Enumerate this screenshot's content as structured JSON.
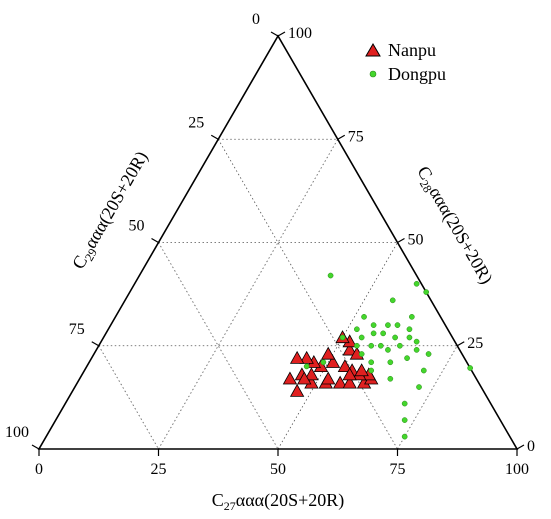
{
  "chart_data": {
    "type": "scatter",
    "subtype": "ternary",
    "axes": {
      "c27": {
        "label_main": "C",
        "label_sub": "27",
        "label_rest": "ααα(20S+20R)",
        "ticks": [
          "0",
          "25",
          "50",
          "75",
          "100"
        ]
      },
      "c28": {
        "label_main": "C",
        "label_sub": "28",
        "label_rest": "ααα(20S+20R)",
        "ticks": [
          "0",
          "25",
          "50",
          "75",
          "100"
        ]
      },
      "c29": {
        "label_main": "C",
        "label_sub": "29",
        "label_rest": "ααα(20S+20R)",
        "ticks": [
          "0",
          "25",
          "50",
          "75",
          "100"
        ]
      }
    },
    "grid": true,
    "grid_style": "dotted",
    "legend_position": "top-right",
    "series": [
      {
        "name": "Nanpu",
        "marker": "triangle",
        "color": "#e02020",
        "points": [
          {
            "c27": 47,
            "c28": 14,
            "c29": 39
          },
          {
            "c27": 49,
            "c28": 16,
            "c29": 35
          },
          {
            "c27": 52,
            "c28": 16,
            "c29": 32
          },
          {
            "c27": 44,
            "c28": 17,
            "c29": 39
          },
          {
            "c27": 46,
            "c28": 18,
            "c29": 36
          },
          {
            "c27": 48,
            "c28": 18,
            "c29": 34
          },
          {
            "c27": 52,
            "c28": 17,
            "c29": 31
          },
          {
            "c27": 55,
            "c28": 16,
            "c29": 29
          },
          {
            "c27": 57,
            "c28": 16,
            "c29": 27
          },
          {
            "c27": 60,
            "c28": 16,
            "c29": 24
          },
          {
            "c27": 61,
            "c28": 17,
            "c29": 22
          },
          {
            "c27": 60,
            "c28": 18,
            "c29": 22
          },
          {
            "c27": 58,
            "c28": 18,
            "c29": 24
          },
          {
            "c27": 56,
            "c28": 19,
            "c29": 25
          },
          {
            "c27": 54,
            "c28": 20,
            "c29": 26
          },
          {
            "c27": 51,
            "c28": 21,
            "c29": 28
          },
          {
            "c27": 49,
            "c28": 20,
            "c29": 31
          },
          {
            "c27": 47,
            "c28": 21,
            "c29": 32
          },
          {
            "c27": 45,
            "c28": 22,
            "c29": 33
          },
          {
            "c27": 43,
            "c28": 22,
            "c29": 35
          },
          {
            "c27": 49,
            "c28": 23,
            "c29": 28
          },
          {
            "c27": 53,
            "c28": 24,
            "c29": 23
          },
          {
            "c27": 55,
            "c28": 23,
            "c29": 22
          },
          {
            "c27": 52,
            "c28": 26,
            "c29": 22
          },
          {
            "c27": 50,
            "c28": 27,
            "c29": 23
          },
          {
            "c27": 56,
            "c28": 18,
            "c29": 26
          },
          {
            "c27": 58,
            "c28": 19,
            "c29": 23
          },
          {
            "c27": 47,
            "c28": 17,
            "c29": 36
          }
        ]
      },
      {
        "name": "Dongpu",
        "marker": "circle",
        "color": "#44d62c",
        "points": [
          {
            "c27": 40,
            "c28": 42,
            "c29": 18
          },
          {
            "c27": 59,
            "c28": 40,
            "c29": 1
          },
          {
            "c27": 62,
            "c28": 38,
            "c29": 0
          },
          {
            "c27": 56,
            "c28": 36,
            "c29": 8
          },
          {
            "c27": 62,
            "c28": 32,
            "c29": 6
          },
          {
            "c27": 52,
            "c28": 32,
            "c29": 16
          },
          {
            "c27": 58,
            "c28": 30,
            "c29": 12
          },
          {
            "c27": 55,
            "c28": 30,
            "c29": 15
          },
          {
            "c27": 52,
            "c28": 29,
            "c29": 19
          },
          {
            "c27": 60,
            "c28": 30,
            "c29": 10
          },
          {
            "c27": 63,
            "c28": 29,
            "c29": 8
          },
          {
            "c27": 56,
            "c28": 28,
            "c29": 16
          },
          {
            "c27": 58,
            "c28": 28,
            "c29": 14
          },
          {
            "c27": 61,
            "c28": 27,
            "c29": 12
          },
          {
            "c27": 64,
            "c28": 27,
            "c29": 9
          },
          {
            "c27": 54,
            "c28": 27,
            "c29": 19
          },
          {
            "c27": 50,
            "c28": 27,
            "c29": 23
          },
          {
            "c27": 66,
            "c28": 26,
            "c29": 8
          },
          {
            "c27": 63,
            "c28": 25,
            "c29": 12
          },
          {
            "c27": 59,
            "c28": 25,
            "c29": 16
          },
          {
            "c27": 57,
            "c28": 25,
            "c29": 18
          },
          {
            "c27": 54,
            "c28": 25,
            "c29": 21
          },
          {
            "c27": 67,
            "c28": 24,
            "c29": 9
          },
          {
            "c27": 61,
            "c28": 24,
            "c29": 15
          },
          {
            "c27": 56,
            "c28": 23,
            "c29": 21
          },
          {
            "c27": 70,
            "c28": 23,
            "c29": 7
          },
          {
            "c27": 66,
            "c28": 22,
            "c29": 12
          },
          {
            "c27": 63,
            "c28": 21,
            "c29": 16
          },
          {
            "c27": 59,
            "c28": 21,
            "c29": 20
          },
          {
            "c27": 49,
            "c28": 21,
            "c29": 30
          },
          {
            "c27": 46,
            "c28": 20,
            "c29": 34
          },
          {
            "c27": 60,
            "c28": 19,
            "c29": 21
          },
          {
            "c27": 71,
            "c28": 19,
            "c29": 10
          },
          {
            "c27": 82,
            "c28": 20,
            "c29": 0
          },
          {
            "c27": 65,
            "c28": 17,
            "c29": 18
          },
          {
            "c27": 72,
            "c28": 15,
            "c29": 13
          },
          {
            "c27": 71,
            "c28": 11,
            "c29": 18
          },
          {
            "c27": 73,
            "c28": 7,
            "c29": 20
          },
          {
            "c27": 75,
            "c28": 3,
            "c29": 22
          }
        ]
      }
    ]
  }
}
